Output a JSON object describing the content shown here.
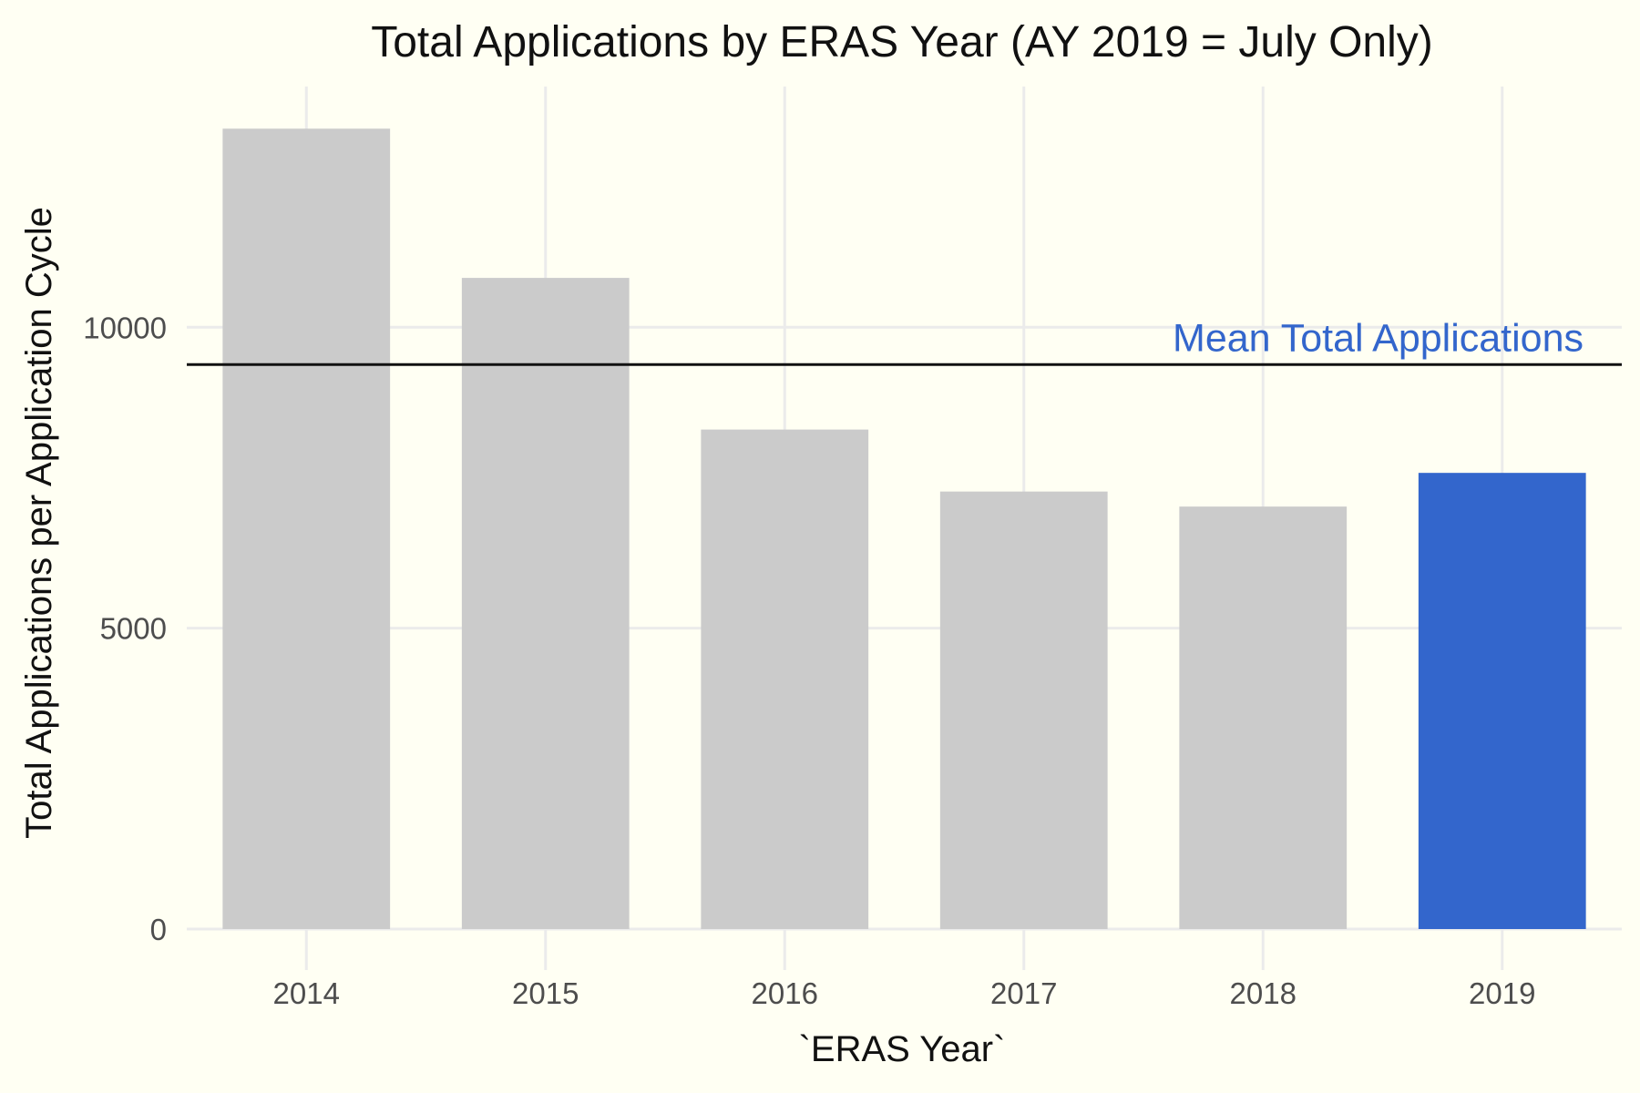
{
  "chart_data": {
    "type": "bar",
    "title": "Total Applications by ERAS Year (AY 2019 = July Only)",
    "xlabel": "`ERAS Year`",
    "ylabel": "Total Applications per Application Cycle",
    "categories": [
      "2014",
      "2015",
      "2016",
      "2017",
      "2018",
      "2019"
    ],
    "values": [
      13300,
      10820,
      8300,
      7270,
      7020,
      7580
    ],
    "bar_colors": [
      "#cbcbcb",
      "#cbcbcb",
      "#cbcbcb",
      "#cbcbcb",
      "#cbcbcb",
      "#3366cc"
    ],
    "highlight_color": "#3366cc",
    "ylim": [
      0,
      14000
    ],
    "yticks": [
      0,
      5000,
      10000
    ],
    "ytick_labels": [
      "0",
      "5000",
      "10000"
    ],
    "mean_line": {
      "value": 9380,
      "label": "Mean Total Applications",
      "line_color": "#111111",
      "label_color": "#3366cc"
    },
    "grid": true,
    "legend": "none"
  }
}
